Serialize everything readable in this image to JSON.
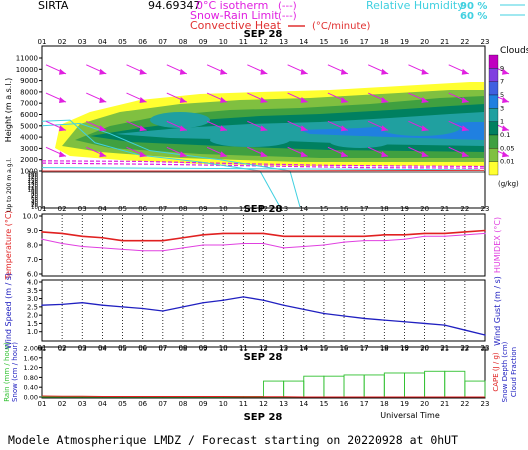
{
  "header": {
    "station": "SIRTA",
    "coords": "94.69347",
    "lines": [
      {
        "label": "0°C isotherm",
        "key": "(---)",
        "color": "#e020e0"
      },
      {
        "label": "Snow-Rain Limit",
        "key": "(---)",
        "color": "#e020e0"
      },
      {
        "label": "Convective Heat",
        "key": "(°C/minute)",
        "color": "#e03030"
      }
    ],
    "humidity_label": "Relative Humidity",
    "humidity_levels": [
      "90 %",
      "60 %"
    ],
    "humidity_color": "#40d0e0"
  },
  "hours": [
    "01",
    "02",
    "03",
    "04",
    "05",
    "06",
    "07",
    "08",
    "09",
    "10",
    "11",
    "12",
    "13",
    "14",
    "15",
    "16",
    "17",
    "18",
    "19",
    "20",
    "21",
    "22",
    "23"
  ],
  "date_label": "SEP 28",
  "utc_label": "Universal Time",
  "footer": "Modele Atmospherique LMDZ / Forecast starting on 20220928 at 0hUT",
  "colors": {
    "temp": "#e02020",
    "humidex": "#e040e0",
    "wind": "#2020c0",
    "precip": "#30c030",
    "wind_arrow": "#e020e0"
  },
  "chart_data": [
    {
      "type": "heatmap",
      "title": "",
      "ylabel": "Height (m a.s.l.)",
      "ylabel2": "Up to 200 m a.g.l.",
      "yticks_upper": [
        1000,
        2000,
        3000,
        4000,
        5000,
        6000,
        7000,
        8000,
        9000,
        10000,
        11000
      ],
      "yticks_lower": [
        10,
        20,
        30,
        40,
        50,
        60,
        70,
        80,
        90,
        100,
        110,
        120,
        130,
        140,
        150,
        160,
        170,
        180,
        190
      ],
      "colorbar_title": "Clouds",
      "colorbar_unit": "(g/kg)",
      "colorbar_ticks": [
        "9",
        "7",
        "5",
        "3",
        "1",
        "0.1",
        "0.05",
        "0.01"
      ],
      "colorbar_colors": [
        "#c000c0",
        "#8040e0",
        "#4060e0",
        "#2080e0",
        "#20a0a0",
        "#008060",
        "#40a040",
        "#80c040",
        "#ffff30"
      ],
      "cloud_levels": [
        {
          "level": 3,
          "color": "#2080e0"
        },
        {
          "level": 1,
          "color": "#20a0a0"
        },
        {
          "level": 0.1,
          "color": "#008060"
        },
        {
          "level": 0.05,
          "color": "#40a040"
        },
        {
          "level": 0.01,
          "color": "#80c040"
        },
        {
          "level": 0.005,
          "color": "#ffff30"
        }
      ]
    },
    {
      "type": "line",
      "xlabel": "",
      "ylabel": "Temperature (°C)",
      "ylabel2": "HUMIDEX (°C)",
      "ylim": [
        6.0,
        10.0
      ],
      "yticks": [
        6.0,
        7.0,
        8.0,
        9.0,
        10.0
      ],
      "series": [
        {
          "name": "Temperature",
          "values": [
            8.9,
            8.8,
            8.6,
            8.5,
            8.3,
            8.3,
            8.3,
            8.5,
            8.7,
            8.8,
            8.8,
            8.8,
            8.6,
            8.6,
            8.6,
            8.6,
            8.6,
            8.7,
            8.7,
            8.8,
            8.8,
            8.9,
            9.0
          ]
        },
        {
          "name": "HUMIDEX",
          "values": [
            8.4,
            8.1,
            7.9,
            7.8,
            7.7,
            7.6,
            7.6,
            7.8,
            8.0,
            8.0,
            8.1,
            8.1,
            7.8,
            7.9,
            8.0,
            8.2,
            8.3,
            8.3,
            8.4,
            8.6,
            8.6,
            8.7,
            8.8
          ]
        }
      ]
    },
    {
      "type": "line",
      "xlabel": "",
      "ylabel": "Wind Speed (m / s)",
      "ylabel2": "Wind Gust (m / s)",
      "ylim": [
        0.5,
        4.0
      ],
      "yticks": [
        1.0,
        1.5,
        2.0,
        2.5,
        3.0,
        3.5,
        4.0
      ],
      "series": [
        {
          "name": "Wind Speed",
          "values": [
            2.6,
            2.65,
            2.75,
            2.6,
            2.5,
            2.4,
            2.25,
            2.5,
            2.75,
            2.9,
            3.1,
            2.9,
            2.6,
            2.35,
            2.1,
            1.95,
            1.8,
            1.7,
            1.6,
            1.5,
            1.4,
            1.1,
            0.8
          ]
        }
      ]
    },
    {
      "type": "bar",
      "xlabel": "Universal Time",
      "ylabel": "Rain (mm / hour)",
      "ylabel_b": "Snow (cm / hour)",
      "ylabel2": "CAPE (J / g)",
      "ylabel2_b": "Snow Depth (cm)",
      "ylabel2_c": "Cloud Fraction",
      "ylim": [
        0,
        2.0
      ],
      "yticks": [
        "0.00",
        "0.40",
        "0.80",
        "1.20",
        "1.60",
        "2.00"
      ],
      "series": [
        {
          "name": "Rain",
          "values": [
            0.02,
            0.02,
            0.02,
            0.02,
            0.02,
            0.02,
            0.02,
            0.02,
            0.02,
            0.02,
            0.02,
            0.65,
            0.65,
            0.85,
            0.85,
            0.9,
            0.9,
            0.98,
            0.98,
            1.05,
            1.05,
            0.65,
            0.65
          ]
        },
        {
          "name": "CAPE",
          "values": [
            0.04,
            0.03,
            0.03,
            0.02,
            0.02,
            0.02,
            0.02,
            0.02,
            0.02,
            0.02,
            0.01,
            0.01,
            0.01,
            0.0,
            0.0,
            0.0,
            0.0,
            0.0,
            0.0,
            0.0,
            0.0,
            0.0,
            0.0
          ]
        }
      ]
    }
  ]
}
